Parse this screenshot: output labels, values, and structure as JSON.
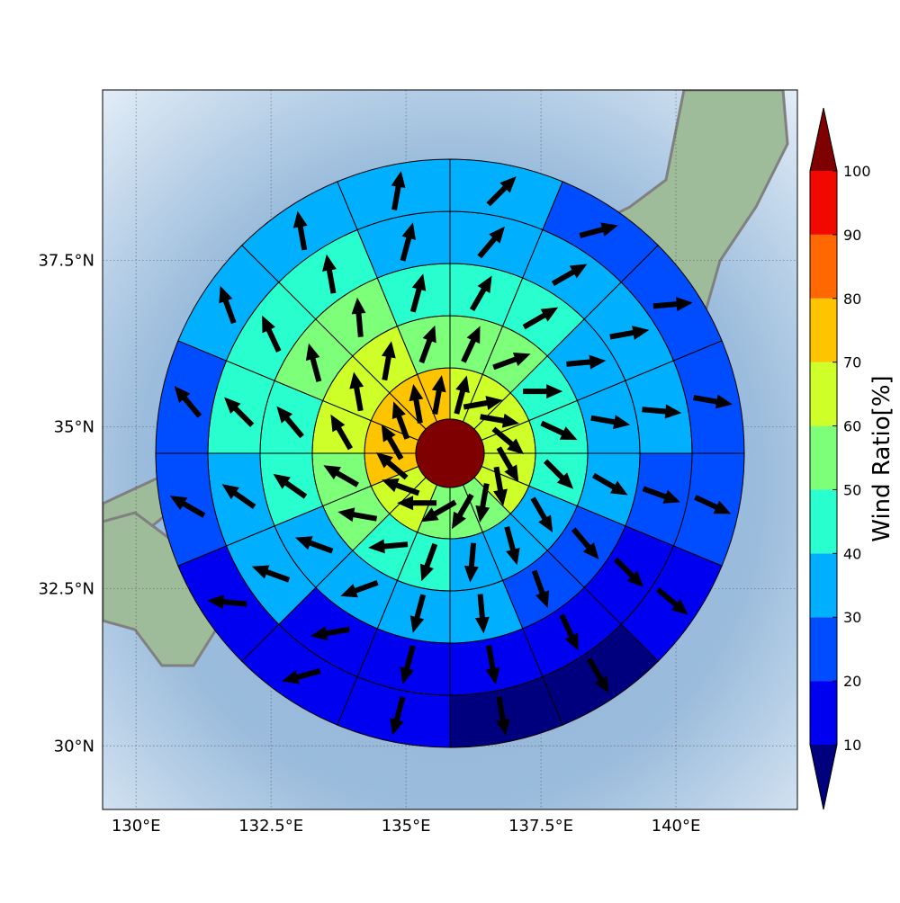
{
  "chart_data": {
    "type": "polar-sectors",
    "projection": "mercator",
    "xlim": [
      129.38,
      142.25
    ],
    "ylim": [
      28.97,
      39.97
    ],
    "xticks": [
      {
        "value": 130,
        "label": "130°E"
      },
      {
        "value": 132.5,
        "label": "132.5°E"
      },
      {
        "value": 135,
        "label": "135°E"
      },
      {
        "value": 137.5,
        "label": "137.5°E"
      },
      {
        "value": 140,
        "label": "140°E"
      }
    ],
    "yticks": [
      {
        "value": 30,
        "label": "30°N"
      },
      {
        "value": 32.5,
        "label": "32.5°N"
      },
      {
        "value": 35,
        "label": "35°N"
      },
      {
        "value": 37.5,
        "label": "37.5°N"
      }
    ],
    "grid": true,
    "rings": [
      {
        "values": [
          65,
          65,
          65,
          65,
          65,
          65,
          55,
          55,
          55,
          65,
          65,
          75,
          75,
          75,
          75,
          75
        ],
        "directions": [
          15,
          80,
          100,
          130,
          150,
          170,
          190,
          210,
          240,
          270,
          290,
          310,
          330,
          340,
          350,
          10
        ]
      },
      {
        "values": [
          55,
          55,
          45,
          45,
          45,
          35,
          35,
          35,
          45,
          45,
          55,
          55,
          65,
          65,
          65,
          55
        ],
        "directions": [
          25,
          70,
          90,
          115,
          135,
          150,
          165,
          185,
          200,
          265,
          280,
          300,
          330,
          350,
          10,
          20
        ]
      },
      {
        "values": [
          45,
          45,
          35,
          35,
          35,
          25,
          25,
          35,
          35,
          35,
          35,
          45,
          45,
          55,
          55,
          45
        ],
        "directions": [
          30,
          60,
          85,
          100,
          120,
          140,
          160,
          175,
          195,
          250,
          290,
          305,
          320,
          345,
          355,
          15
        ]
      },
      {
        "values": [
          35,
          35,
          35,
          35,
          25,
          15,
          15,
          15,
          15,
          15,
          35,
          35,
          45,
          45,
          45,
          35
        ],
        "directions": [
          40,
          60,
          80,
          95,
          110,
          135,
          155,
          170,
          195,
          260,
          290,
          305,
          315,
          335,
          350,
          15
        ]
      },
      {
        "values": [
          35,
          25,
          25,
          25,
          25,
          15,
          5,
          5,
          15,
          15,
          15,
          25,
          25,
          35,
          35,
          35
        ],
        "directions": [
          45,
          75,
          85,
          100,
          115,
          130,
          150,
          170,
          195,
          255,
          275,
          300,
          320,
          340,
          350,
          10
        ]
      }
    ],
    "colorbar": {
      "label": "Wind Ratio[%]",
      "levels": [
        10,
        20,
        30,
        40,
        50,
        60,
        70,
        80,
        90,
        100
      ],
      "colors": [
        "#0000f1",
        "#004cff",
        "#00b0ff",
        "#29ffce",
        "#7dff7a",
        "#ceff29",
        "#ffc400",
        "#ff6800",
        "#f10800"
      ],
      "under": "#00007f",
      "over": "#7f0000"
    }
  }
}
